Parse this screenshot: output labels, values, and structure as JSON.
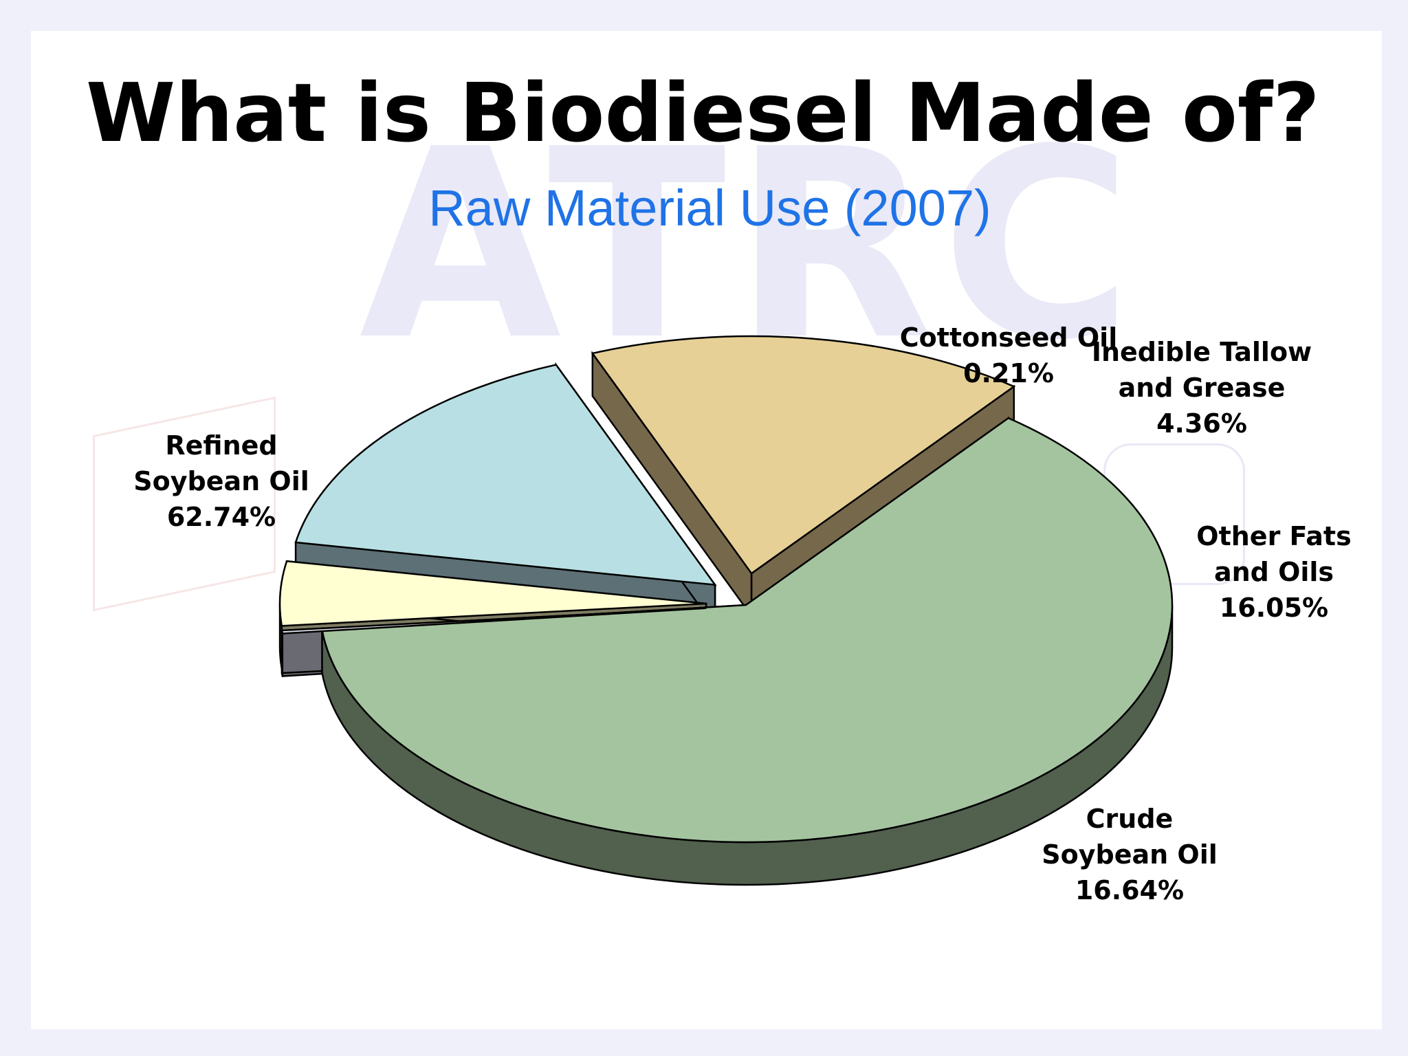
{
  "slide": {
    "title": "What is Biodiesel Made of?",
    "watermark": "ATRC"
  },
  "colors": {
    "subtitle": "#1f73e6",
    "background": "#f0f0fb"
  },
  "chart_data": {
    "type": "pie",
    "style": "3d-exploded",
    "title": "Raw Material Use (2007)",
    "slices": [
      {
        "name_lines": [
          "Refined",
          "Soybean Oil"
        ],
        "value": 62.74,
        "value_label": "62.74%",
        "color": "#a4c4a0",
        "side_color": "#52604e"
      },
      {
        "name_lines": [
          "Cottonseed Oil"
        ],
        "value": 0.21,
        "value_label": "0.21%",
        "color": "#e0e0e8",
        "side_color": "#6a6a72"
      },
      {
        "name_lines": [
          "Inedible Tallow",
          "and Grease"
        ],
        "value": 4.36,
        "value_label": "4.36%",
        "color": "#ffffd2",
        "side_color": "#7e7c62"
      },
      {
        "name_lines": [
          "Other Fats",
          "and Oils"
        ],
        "value": 16.05,
        "value_label": "16.05%",
        "color": "#b8e0e4",
        "side_color": "#5c7076"
      },
      {
        "name_lines": [
          "Crude",
          "Soybean Oil"
        ],
        "value": 16.64,
        "value_label": "16.64%",
        "color": "#e6d096",
        "side_color": "#76684a"
      }
    ]
  }
}
